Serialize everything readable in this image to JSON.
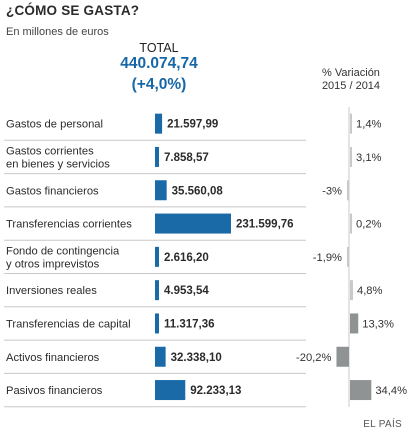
{
  "header": {
    "title": "¿CÓMO SE GASTA?",
    "subtitle": "En millones de euros",
    "total_label": "TOTAL",
    "total_value": "440.074,74",
    "total_change": "(+4,0%)",
    "variation_header_line1": "% Variación",
    "variation_header_line2": "2015 / 2014"
  },
  "source": "EL PAÍS",
  "colors": {
    "bar_blue": "#1a6aa8",
    "var_gray": "#c7c9ca",
    "var_gray_dark": "#8f9394",
    "divider": "#c8c8c8"
  },
  "chart_data": {
    "type": "bar",
    "orientation": "horizontal",
    "unit": "millones de euros",
    "categories": [
      [
        "Gastos de personal"
      ],
      [
        "Gastos corrientes",
        "en bienes y servicios"
      ],
      [
        "Gastos financieros"
      ],
      [
        "Transferencias corrientes"
      ],
      [
        "Fondo de contingencia",
        "y otros imprevistos"
      ],
      [
        "Inversiones reales"
      ],
      [
        "Transferencias de capital"
      ],
      [
        "Activos financieros"
      ],
      [
        "Pasivos financieros"
      ]
    ],
    "values": [
      21597.99,
      7858.57,
      35560.08,
      231599.76,
      2616.2,
      4953.54,
      11317.36,
      32338.1,
      92233.13
    ],
    "value_labels": [
      "21.597,99",
      "7.858,57",
      "35.560,08",
      "231.599,76",
      "2.616,20",
      "4.953,54",
      "11.317,36",
      "32.338,10",
      "92.233,13"
    ],
    "variation_pct": [
      1.4,
      3.1,
      -3,
      0.2,
      -1.9,
      4.8,
      13.3,
      -20.2,
      34.4
    ],
    "variation_labels": [
      "1,4%",
      "3,1%",
      "-3%",
      "0,2%",
      "-1,9%",
      "4,8%",
      "13,3%",
      "-20,2%",
      "34,4%"
    ]
  }
}
